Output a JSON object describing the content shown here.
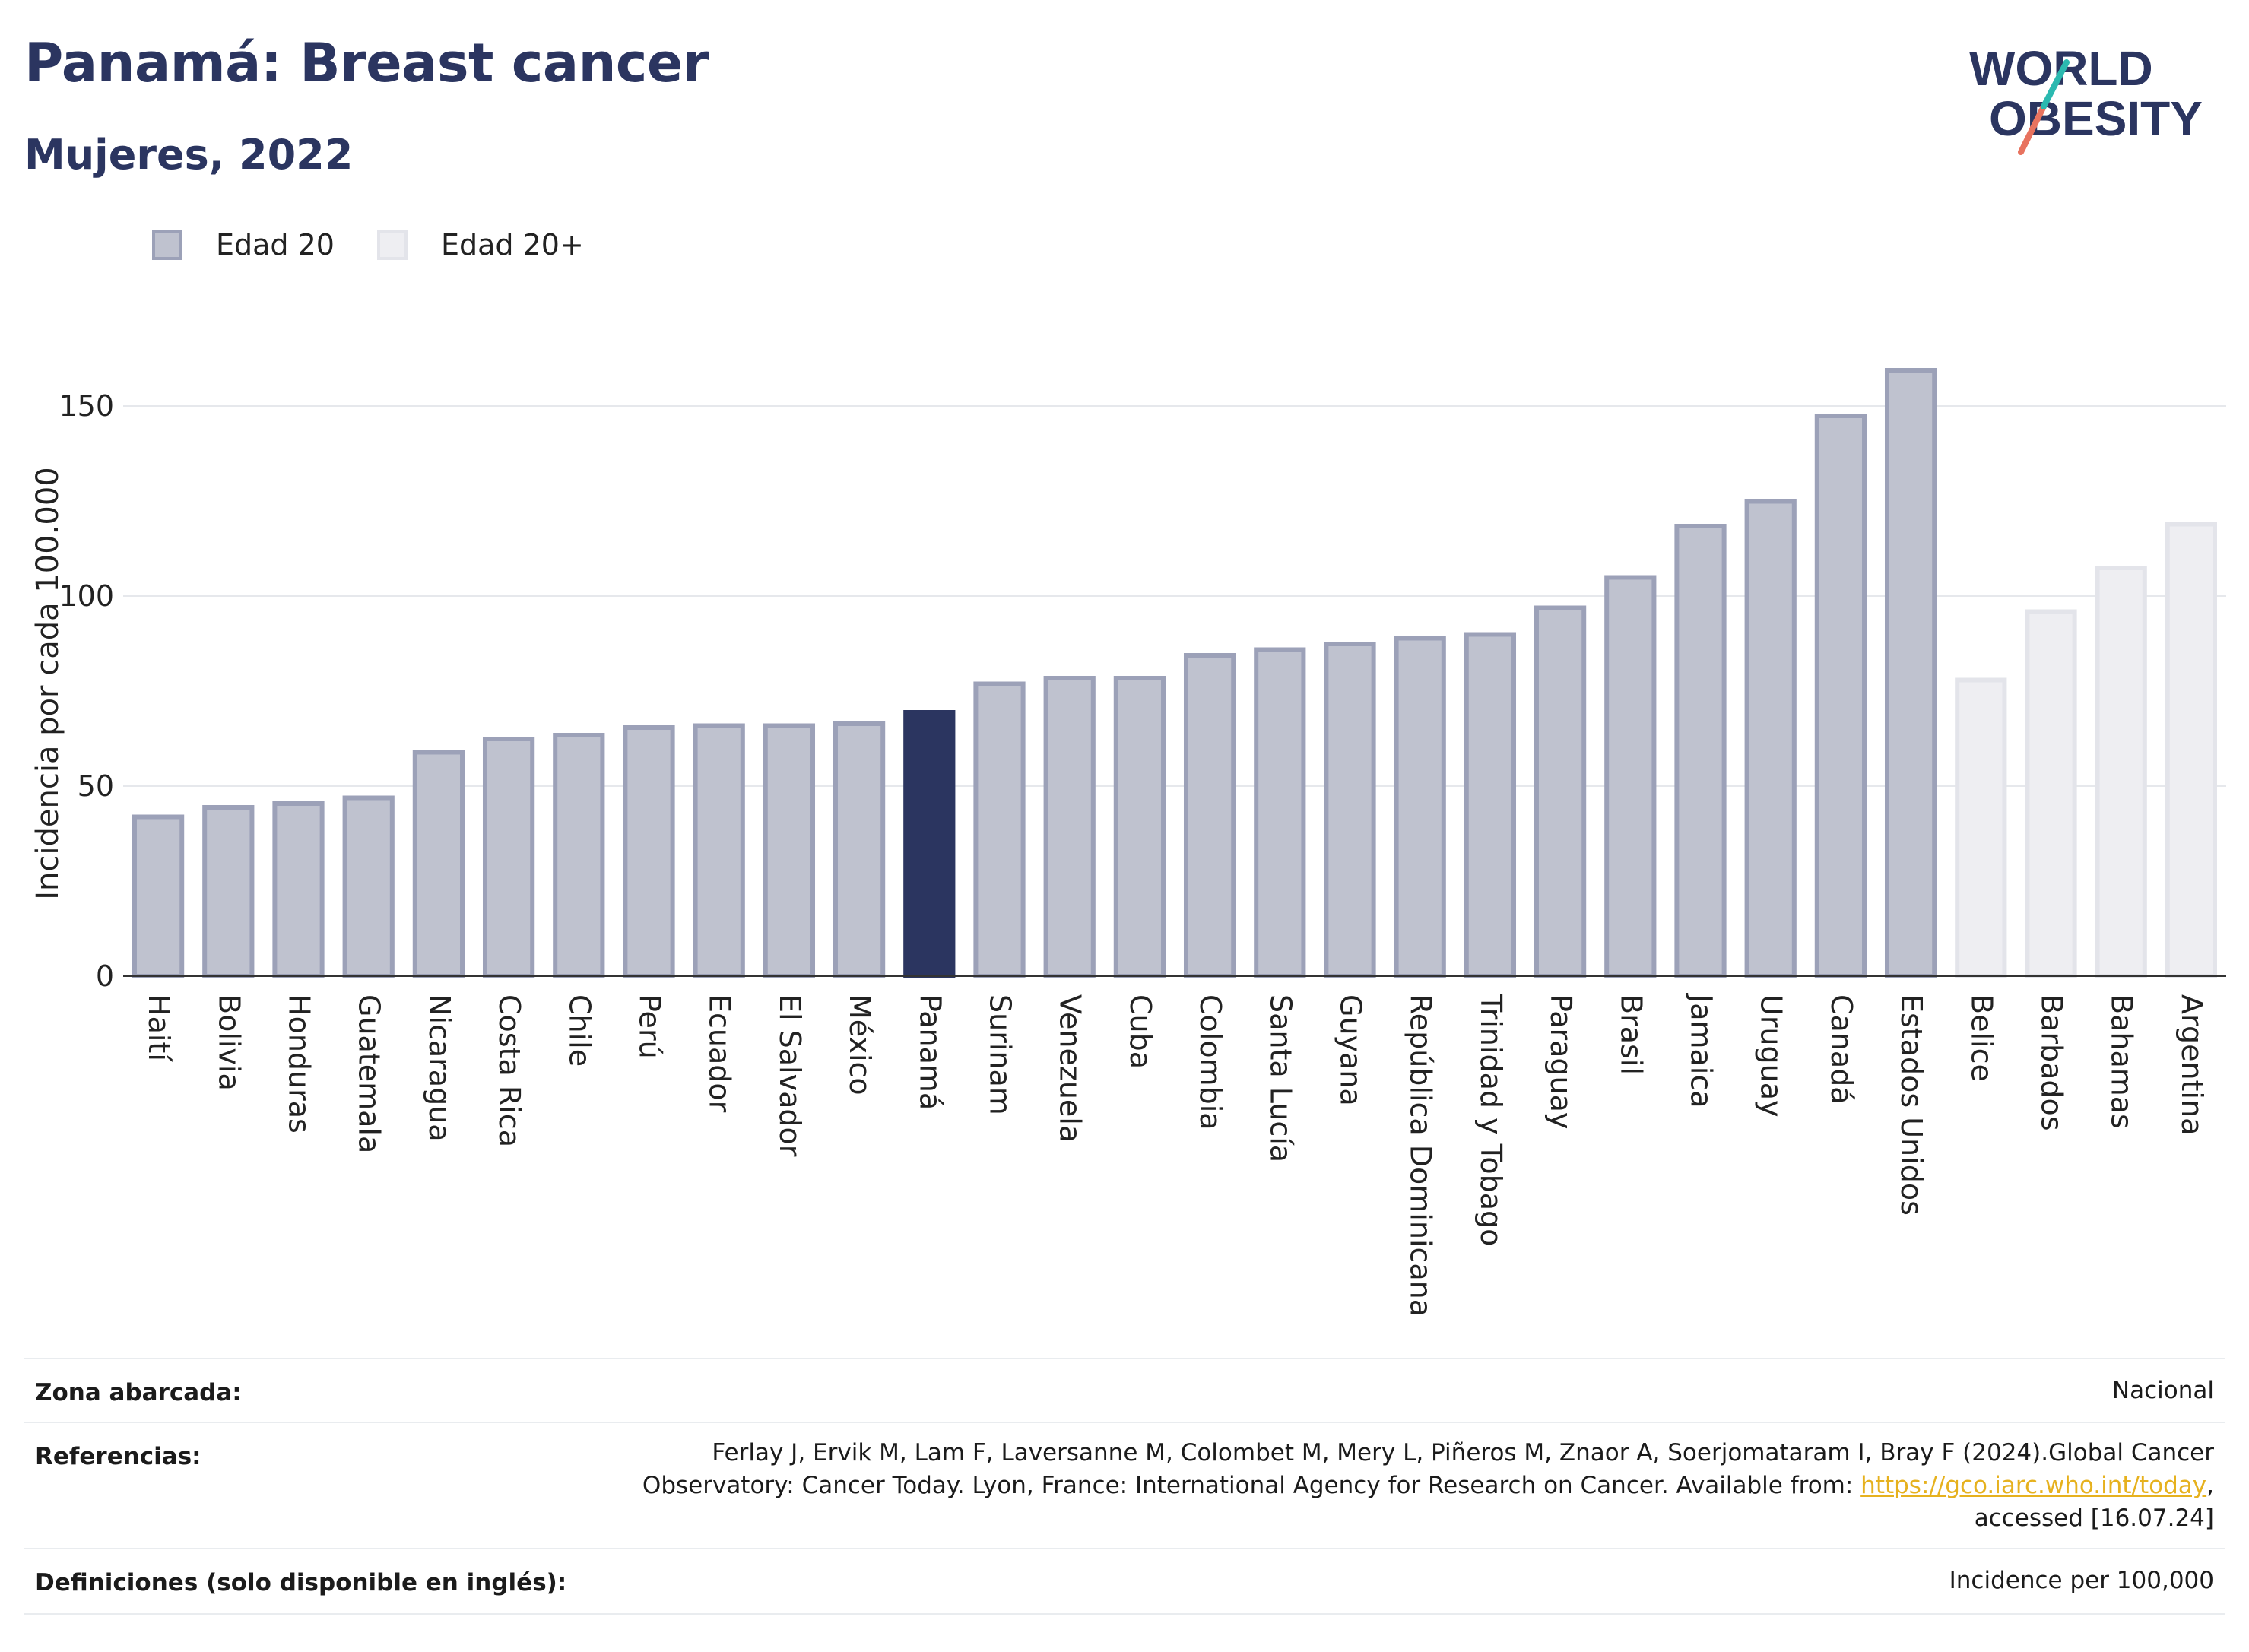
{
  "header": {
    "title": "Panamá: Breast cancer",
    "subtitle": "Mujeres, 2022"
  },
  "logo": {
    "line1": "WORLD",
    "line2": "OBESITY"
  },
  "legend": [
    {
      "label": "Edad 20",
      "color": "#bfc2cf"
    },
    {
      "label": "Edad 20+",
      "color": "#eeeef2"
    }
  ],
  "chart_data": {
    "type": "bar",
    "ylabel": "Incidencia por cada 100.000",
    "xlabel": "",
    "ylim": [
      0,
      170
    ],
    "yticks": [
      0,
      50,
      100,
      150
    ],
    "grid": true,
    "legend_position": "top-left",
    "categories": [
      "Haití",
      "Bolivia",
      "Honduras",
      "Guatemala",
      "Nicaragua",
      "Costa Rica",
      "Chile",
      "Perú",
      "Ecuador",
      "El Salvador",
      "México",
      "Panamá",
      "Surinam",
      "Venezuela",
      "Cuba",
      "Colombia",
      "Santa Lucía",
      "Guyana",
      "República Dominicana",
      "Trinidad y Tobago",
      "Paraguay",
      "Brasil",
      "Jamaica",
      "Uruguay",
      "Canadá",
      "Estados Unidos",
      "Belice",
      "Barbados",
      "Bahamas",
      "Argentina"
    ],
    "values": [
      42.5,
      45,
      46,
      47.5,
      59.5,
      63,
      64,
      66,
      66.5,
      66.5,
      67,
      70,
      77.5,
      79,
      79,
      85,
      86.5,
      88,
      89.5,
      90.5,
      97.5,
      105.5,
      119,
      125.5,
      148,
      160,
      78.5,
      96.5,
      108,
      119.5
    ],
    "series_group": [
      "Edad 20",
      "Edad 20",
      "Edad 20",
      "Edad 20",
      "Edad 20",
      "Edad 20",
      "Edad 20",
      "Edad 20",
      "Edad 20",
      "Edad 20",
      "Edad 20",
      "Edad 20",
      "Edad 20",
      "Edad 20",
      "Edad 20",
      "Edad 20",
      "Edad 20",
      "Edad 20",
      "Edad 20",
      "Edad 20",
      "Edad 20",
      "Edad 20",
      "Edad 20",
      "Edad 20",
      "Edad 20",
      "Edad 20",
      "Edad 20+",
      "Edad 20+",
      "Edad 20+",
      "Edad 20+"
    ],
    "highlight": "Panamá",
    "colors": {
      "edad20_fill": "#bfc2cf",
      "edad20_stroke": "#9ca1b8",
      "edad20plus_fill": "#eeeef2",
      "edad20plus_stroke": "#e3e4ea",
      "highlight": "#2b3560"
    }
  },
  "info": {
    "zona_key": "Zona abarcada:",
    "zona_value": "Nacional",
    "ref_key": "Referencias:",
    "ref_line1": "Ferlay J, Ervik M, Lam F, Laversanne M, Colombet M, Mery L, Piñeros M, Znaor A, Soerjomataram I, Bray F (2024).Global Cancer",
    "ref_line2_pre": "Observatory: Cancer Today. Lyon, France: International Agency for Research on Cancer. Available from: ",
    "ref_link": "https://gco.iarc.who.int/today",
    "ref_line2_post": ",",
    "ref_line3": "accessed [16.07.24]",
    "def_key": "Definiciones (solo disponible en inglés):",
    "def_value": "Incidence per 100,000"
  }
}
